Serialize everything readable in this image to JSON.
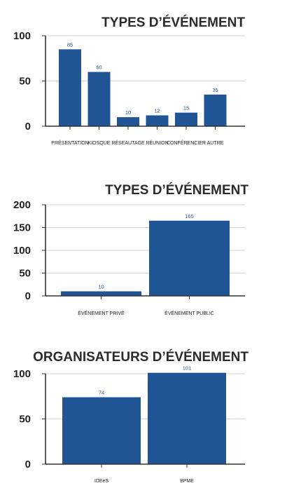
{
  "colors": {
    "bar": "#1f5594",
    "label": "#1d4f8c"
  },
  "chart_data": [
    {
      "type": "bar",
      "title": "TYPES D’ÉVÉNEMENT",
      "categories": [
        "PRÉSENTATION",
        "KIOSQUE",
        "RÉSEAUTAGE",
        "RÉUNION",
        "CONFÉRENCIER",
        "AUTRE"
      ],
      "values": [
        85,
        60,
        10,
        12,
        15,
        35
      ],
      "value_labels": [
        "85",
        "60",
        "10",
        "12",
        "15",
        "35"
      ],
      "yticks": [
        "0",
        "50",
        "100"
      ],
      "ylim": [
        0,
        100
      ],
      "grid": true
    },
    {
      "type": "bar",
      "title": "TYPES D’ÉVÉNEMENT",
      "categories": [
        "ÉVÉNEMENT PRIVÉ",
        "ÉVÉNEMENT PUBLIC"
      ],
      "values": [
        10,
        165
      ],
      "value_labels": [
        "10",
        "165"
      ],
      "yticks": [
        "0",
        "50",
        "100",
        "150",
        "200"
      ],
      "ylim": [
        0,
        200
      ],
      "grid": true
    },
    {
      "type": "bar",
      "title": "ORGANISATEURS D’ÉVÉNEMENT",
      "categories": [
        "IDEeS",
        "BPME"
      ],
      "values": [
        74,
        101
      ],
      "value_labels": [
        "74",
        "101"
      ],
      "yticks": [
        "0",
        "50",
        "100"
      ],
      "ylim": [
        0,
        100
      ],
      "grid": true
    }
  ]
}
